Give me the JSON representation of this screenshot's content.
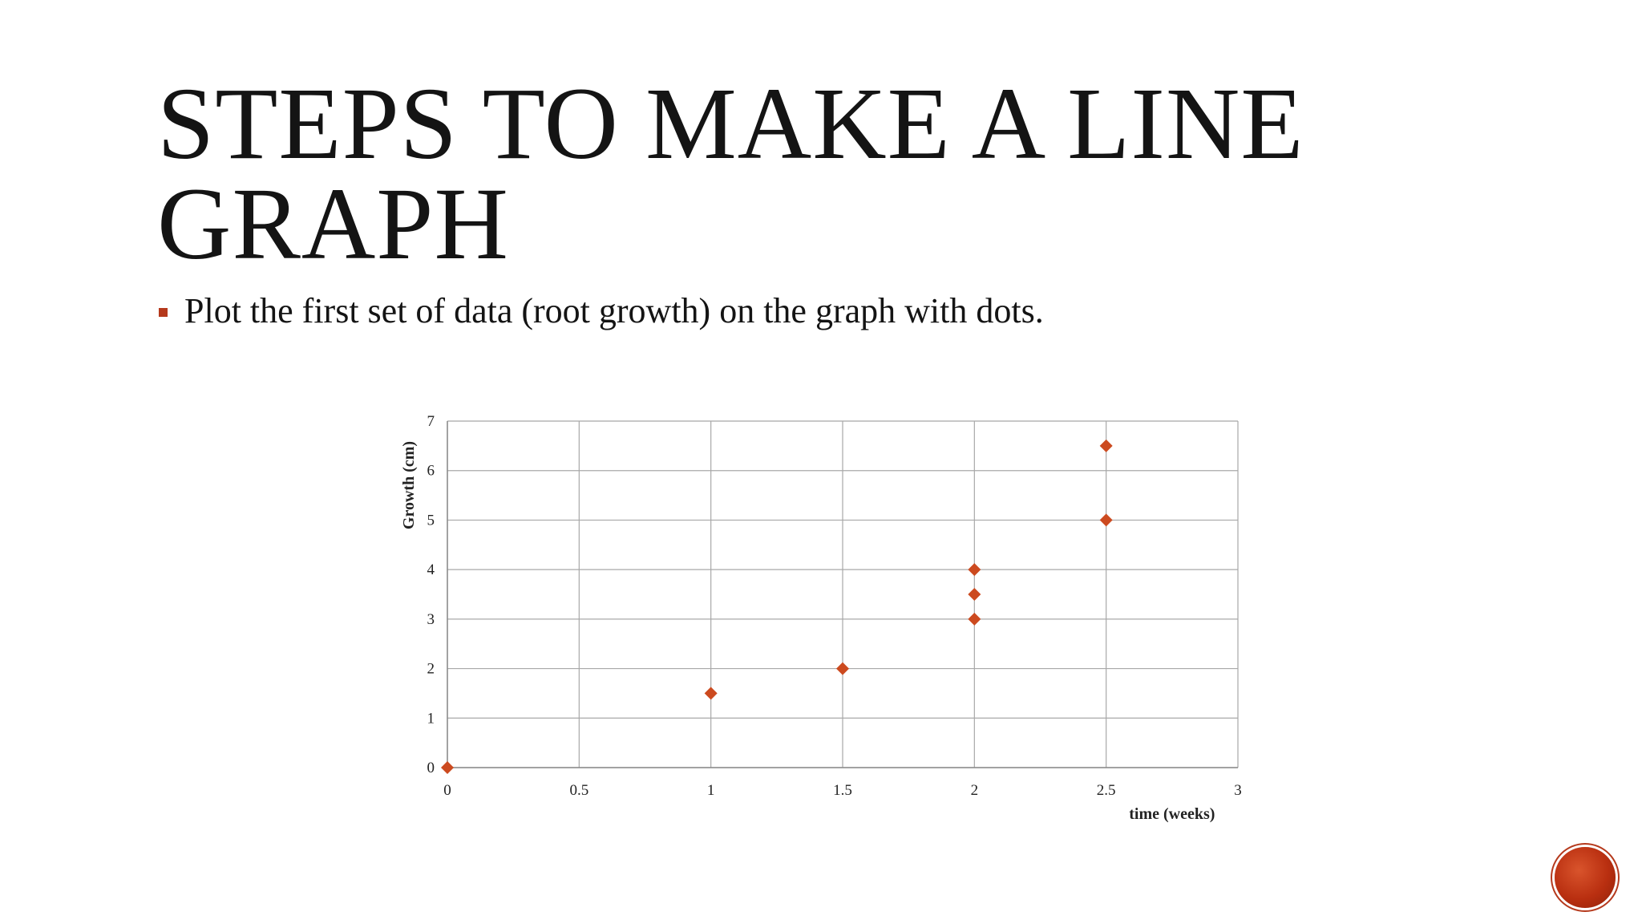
{
  "slide": {
    "title_lines": [
      "STEPS TO MAKE A LINE",
      "GRAPH"
    ],
    "bullets": [
      "Plot the first set of data (root growth) on the graph with dots."
    ],
    "accent_color": "#b5391c"
  },
  "chart_data": {
    "type": "scatter",
    "title": "",
    "xlabel": "time (weeks)",
    "ylabel": "Growth (cm)",
    "xlim": [
      0,
      3
    ],
    "ylim": [
      0,
      7
    ],
    "x_ticks": [
      0,
      0.5,
      1,
      1.5,
      2,
      2.5,
      3
    ],
    "x_tick_labels": [
      "0",
      "0.5",
      "1",
      "1.5",
      "2",
      "2.5",
      "3"
    ],
    "y_ticks": [
      0,
      1,
      2,
      3,
      4,
      5,
      6,
      7
    ],
    "y_tick_labels": [
      "0",
      "1",
      "2",
      "3",
      "4",
      "5",
      "6",
      "7"
    ],
    "grid": true,
    "marker": "diamond",
    "marker_color": "#cc4a1f",
    "series": [
      {
        "x": [
          0,
          1,
          1.5,
          2,
          2,
          2,
          2.5,
          2.5
        ],
        "y": [
          0,
          1.5,
          2,
          3,
          3.5,
          4,
          5,
          6.5
        ]
      }
    ]
  }
}
